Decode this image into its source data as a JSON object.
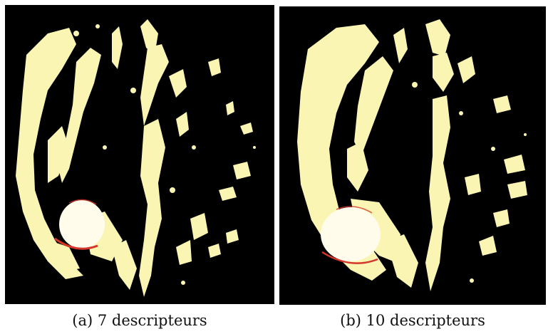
{
  "figure": {
    "background": "#000000",
    "segment_color": "#fbf5b3",
    "tumor_color": "#fffcec",
    "contour_color": "#d6352c"
  },
  "panels": [
    {
      "caption": "(a) 7 descripteurs"
    },
    {
      "caption": "(b) 10 descripteurs"
    }
  ]
}
